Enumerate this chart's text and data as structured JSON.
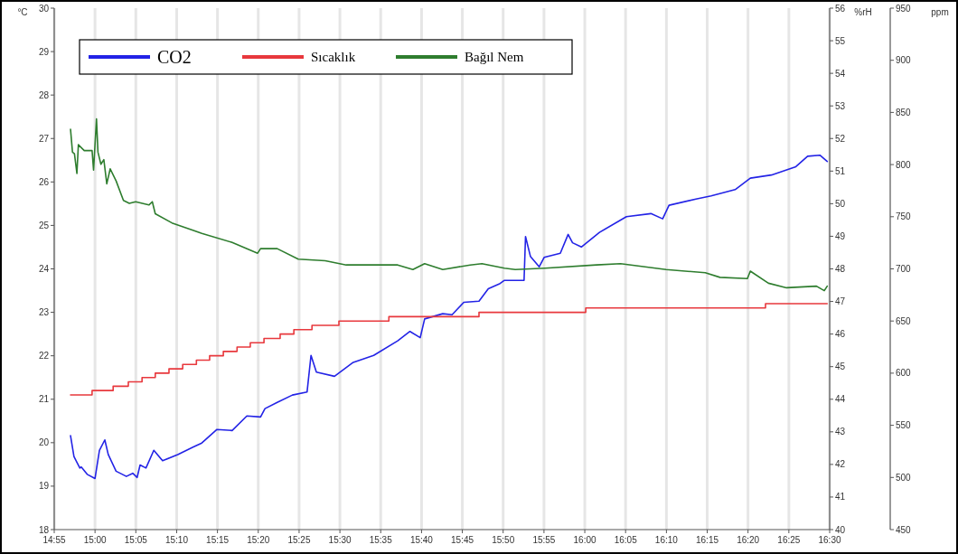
{
  "chart_data": {
    "type": "line",
    "ylabel": "°C",
    "y2label": "%rH",
    "y3label": "ppm",
    "legend": "top left",
    "grid": "x",
    "xlim": [
      14.9167,
      16.5
    ],
    "xticks": [
      {
        "value": 14.9167,
        "label": "14:55"
      },
      {
        "value": 15,
        "label": "15:00"
      },
      {
        "value": 15.0833,
        "label": "15:05"
      },
      {
        "value": 15.1667,
        "label": "15:10"
      },
      {
        "value": 15.25,
        "label": "15:15"
      },
      {
        "value": 15.3333,
        "label": "15:20"
      },
      {
        "value": 15.4167,
        "label": "15:25"
      },
      {
        "value": 15.5,
        "label": "15:30"
      },
      {
        "value": 15.5833,
        "label": "15:35"
      },
      {
        "value": 15.6667,
        "label": "15:40"
      },
      {
        "value": 15.75,
        "label": "15:45"
      },
      {
        "value": 15.8333,
        "label": "15:50"
      },
      {
        "value": 15.9167,
        "label": "15:55"
      },
      {
        "value": 16,
        "label": "16:00"
      },
      {
        "value": 16.0833,
        "label": "16:05"
      },
      {
        "value": 16.1667,
        "label": "16:10"
      },
      {
        "value": 16.25,
        "label": "16:15"
      },
      {
        "value": 16.3333,
        "label": "16:20"
      },
      {
        "value": 16.4167,
        "label": "16:25"
      },
      {
        "value": 16.5,
        "label": "16:30"
      }
    ],
    "ylim": [
      18,
      30
    ],
    "yticks": [
      18,
      19,
      20,
      21,
      22,
      23,
      24,
      25,
      26,
      27,
      28,
      29,
      30
    ],
    "y2lim": [
      40,
      56
    ],
    "y2ticks": [
      40,
      41,
      42,
      43,
      44,
      45,
      46,
      47,
      48,
      49,
      50,
      51,
      52,
      53,
      54,
      55,
      56
    ],
    "y3lim": [
      450,
      950
    ],
    "y3ticks": [
      450,
      500,
      550,
      600,
      650,
      700,
      750,
      800,
      850,
      900,
      950
    ],
    "series": [
      {
        "name": "CO2",
        "color": "#2323e6",
        "axis": "y3",
        "x": [
          14.95,
          14.957,
          14.969,
          14.972,
          14.984,
          15.0,
          15.009,
          15.02,
          15.027,
          15.043,
          15.064,
          15.077,
          15.086,
          15.092,
          15.104,
          15.12,
          15.138,
          15.169,
          15.2,
          15.218,
          15.249,
          15.28,
          15.31,
          15.338,
          15.347,
          15.372,
          15.403,
          15.433,
          15.441,
          15.452,
          15.489,
          15.526,
          15.569,
          15.618,
          15.643,
          15.664,
          15.673,
          15.71,
          15.729,
          15.753,
          15.784,
          15.803,
          15.827,
          15.836,
          15.87,
          15.876,
          15.879,
          15.889,
          15.907,
          15.917,
          15.95,
          15.966,
          15.975,
          15.993,
          16.03,
          16.085,
          16.135,
          16.159,
          16.172,
          16.227,
          16.258,
          16.307,
          16.338,
          16.381,
          16.431,
          16.455,
          16.48,
          16.495
        ],
        "values": [
          540,
          520,
          509,
          510,
          503,
          499,
          526,
          536,
          522,
          506,
          501,
          504,
          500,
          512,
          509,
          526,
          516,
          522,
          529,
          533,
          546,
          545,
          559,
          558,
          566,
          572,
          579,
          582,
          617,
          601,
          597,
          610,
          617,
          631,
          640,
          634,
          652,
          657,
          656,
          668,
          669,
          681,
          686,
          689,
          689,
          689,
          731,
          712,
          702,
          711,
          715,
          733,
          725,
          721,
          735,
          750,
          753,
          748,
          761,
          767,
          770,
          776,
          787,
          790,
          798,
          808,
          809,
          803
        ]
      },
      {
        "name": "Sıcaklık",
        "color": "#e8383d",
        "type": "step",
        "x": [
          14.95,
          14.994,
          15.037,
          15.068,
          15.096,
          15.123,
          15.151,
          15.179,
          15.207,
          15.234,
          15.262,
          15.29,
          15.317,
          15.345,
          15.378,
          15.406,
          15.443,
          15.498,
          15.6,
          15.784,
          16.002,
          16.369,
          16.495
        ],
        "values": [
          21.1,
          21.2,
          21.3,
          21.4,
          21.5,
          21.6,
          21.7,
          21.8,
          21.9,
          22.0,
          22.1,
          22.2,
          22.3,
          22.4,
          22.5,
          22.6,
          22.7,
          22.8,
          22.9,
          23.0,
          23.1,
          23.2,
          23.2
        ]
      },
      {
        "name": "Bağıl Nem",
        "color": "#2e7d2e",
        "axis": "y2",
        "x": [
          14.95,
          14.954,
          14.958,
          14.963,
          14.966,
          14.978,
          14.994,
          14.997,
          15.003,
          15.006,
          15.012,
          15.018,
          15.024,
          15.031,
          15.043,
          15.058,
          15.07,
          15.083,
          15.11,
          15.117,
          15.123,
          15.157,
          15.218,
          15.28,
          15.332,
          15.338,
          15.372,
          15.415,
          15.47,
          15.513,
          15.618,
          15.649,
          15.673,
          15.71,
          15.766,
          15.79,
          15.836,
          15.858,
          15.919,
          16.024,
          16.073,
          16.166,
          16.246,
          16.276,
          16.332,
          16.338,
          16.375,
          16.412,
          16.473,
          16.489,
          16.495
        ],
        "values": [
          52.28,
          51.58,
          51.53,
          50.93,
          51.81,
          51.63,
          51.63,
          51.03,
          52.6,
          51.58,
          51.21,
          51.35,
          50.61,
          51.07,
          50.7,
          50.1,
          50.01,
          50.06,
          49.96,
          50.06,
          49.69,
          49.41,
          49.09,
          48.81,
          48.48,
          48.62,
          48.62,
          48.3,
          48.25,
          48.12,
          48.12,
          47.98,
          48.16,
          47.98,
          48.12,
          48.16,
          48.02,
          47.98,
          48.02,
          48.12,
          48.16,
          47.98,
          47.88,
          47.74,
          47.7,
          47.93,
          47.56,
          47.42,
          47.47,
          47.33,
          47.47
        ]
      }
    ]
  }
}
